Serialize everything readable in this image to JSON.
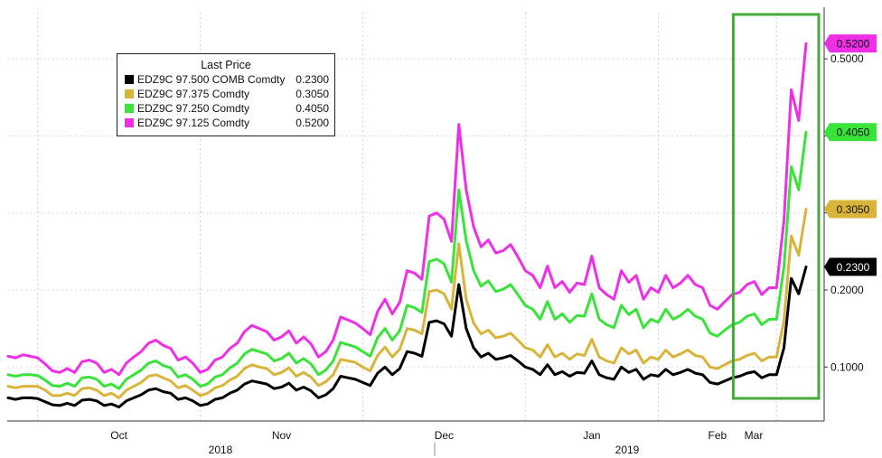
{
  "chart_data": {
    "type": "line",
    "legend_title": "Last Price",
    "legend_placement": "top-left",
    "y_axis_side": "right",
    "ylim": [
      0.03,
      0.56
    ],
    "y_ticks": [
      0.1,
      0.2,
      0.3,
      0.4,
      0.5
    ],
    "y_tick_labels": [
      "0.1000",
      "0.2000",
      "0.3000",
      "0.4000",
      "0.5000"
    ],
    "grid": "vertical dashed",
    "x_month_labels": [
      "Oct",
      "Nov",
      "Dec",
      "Jan",
      "Feb",
      "Mar"
    ],
    "x_year_labels": [
      "2018",
      "2019"
    ],
    "x_count": 109,
    "highlight_box_start_index": 99,
    "highlight_color": "#44aa3a",
    "series": [
      {
        "name": "EDZ9C 97.500 COMB Comdty",
        "last": "0.2300",
        "color": "#000000",
        "values": [
          0.06,
          0.058,
          0.06,
          0.06,
          0.059,
          0.055,
          0.051,
          0.05,
          0.053,
          0.05,
          0.057,
          0.058,
          0.056,
          0.05,
          0.052,
          0.048,
          0.056,
          0.06,
          0.064,
          0.07,
          0.072,
          0.068,
          0.066,
          0.058,
          0.06,
          0.056,
          0.05,
          0.052,
          0.058,
          0.06,
          0.066,
          0.07,
          0.078,
          0.082,
          0.08,
          0.078,
          0.072,
          0.074,
          0.079,
          0.07,
          0.074,
          0.069,
          0.06,
          0.064,
          0.072,
          0.088,
          0.086,
          0.084,
          0.08,
          0.076,
          0.092,
          0.1,
          0.09,
          0.098,
          0.12,
          0.118,
          0.114,
          0.158,
          0.16,
          0.156,
          0.14,
          0.207,
          0.15,
          0.125,
          0.113,
          0.118,
          0.11,
          0.112,
          0.115,
          0.108,
          0.1,
          0.097,
          0.09,
          0.103,
          0.09,
          0.094,
          0.088,
          0.093,
          0.092,
          0.108,
          0.09,
          0.086,
          0.084,
          0.1,
          0.093,
          0.097,
          0.084,
          0.09,
          0.088,
          0.097,
          0.09,
          0.093,
          0.097,
          0.092,
          0.09,
          0.08,
          0.078,
          0.082,
          0.086,
          0.088,
          0.092,
          0.094,
          0.086,
          0.09,
          0.09,
          0.125,
          0.215,
          0.195,
          0.23
        ]
      },
      {
        "name": "EDZ9C 97.375 Comdty",
        "last": "0.3050",
        "color": "#d8b43a",
        "values": [
          0.075,
          0.073,
          0.075,
          0.075,
          0.075,
          0.07,
          0.063,
          0.063,
          0.066,
          0.063,
          0.072,
          0.073,
          0.07,
          0.063,
          0.066,
          0.06,
          0.07,
          0.075,
          0.08,
          0.088,
          0.09,
          0.086,
          0.082,
          0.073,
          0.076,
          0.07,
          0.063,
          0.066,
          0.073,
          0.076,
          0.083,
          0.088,
          0.098,
          0.103,
          0.1,
          0.098,
          0.09,
          0.093,
          0.099,
          0.088,
          0.093,
          0.087,
          0.076,
          0.081,
          0.09,
          0.11,
          0.108,
          0.106,
          0.1,
          0.095,
          0.115,
          0.126,
          0.113,
          0.123,
          0.15,
          0.148,
          0.143,
          0.198,
          0.2,
          0.195,
          0.175,
          0.26,
          0.188,
          0.157,
          0.143,
          0.148,
          0.138,
          0.14,
          0.144,
          0.135,
          0.125,
          0.122,
          0.113,
          0.129,
          0.113,
          0.118,
          0.11,
          0.117,
          0.115,
          0.136,
          0.113,
          0.108,
          0.105,
          0.125,
          0.117,
          0.122,
          0.105,
          0.113,
          0.11,
          0.122,
          0.113,
          0.117,
          0.122,
          0.115,
          0.113,
          0.1,
          0.098,
          0.103,
          0.108,
          0.11,
          0.115,
          0.118,
          0.108,
          0.113,
          0.113,
          0.16,
          0.27,
          0.245,
          0.305
        ]
      },
      {
        "name": "EDZ9C 97.250 Comdty",
        "last": "0.4050",
        "color": "#39e339",
        "values": [
          0.09,
          0.088,
          0.09,
          0.09,
          0.089,
          0.083,
          0.076,
          0.075,
          0.079,
          0.075,
          0.086,
          0.087,
          0.084,
          0.075,
          0.078,
          0.072,
          0.084,
          0.09,
          0.096,
          0.105,
          0.108,
          0.102,
          0.099,
          0.087,
          0.09,
          0.084,
          0.075,
          0.078,
          0.087,
          0.09,
          0.099,
          0.105,
          0.117,
          0.123,
          0.12,
          0.117,
          0.108,
          0.111,
          0.118,
          0.105,
          0.111,
          0.104,
          0.09,
          0.096,
          0.108,
          0.132,
          0.129,
          0.126,
          0.12,
          0.114,
          0.138,
          0.15,
          0.135,
          0.147,
          0.18,
          0.177,
          0.171,
          0.237,
          0.24,
          0.234,
          0.21,
          0.33,
          0.264,
          0.225,
          0.205,
          0.212,
          0.198,
          0.201,
          0.207,
          0.194,
          0.18,
          0.175,
          0.162,
          0.185,
          0.162,
          0.169,
          0.158,
          0.167,
          0.166,
          0.195,
          0.162,
          0.155,
          0.151,
          0.18,
          0.168,
          0.175,
          0.151,
          0.162,
          0.158,
          0.175,
          0.162,
          0.167,
          0.175,
          0.166,
          0.162,
          0.144,
          0.14,
          0.148,
          0.155,
          0.158,
          0.166,
          0.169,
          0.155,
          0.162,
          0.162,
          0.23,
          0.36,
          0.33,
          0.405
        ]
      },
      {
        "name": "EDZ9C 97.125 Comdty",
        "last": "0.5200",
        "color": "#ee2fe6",
        "values": [
          0.114,
          0.112,
          0.116,
          0.114,
          0.112,
          0.104,
          0.095,
          0.093,
          0.098,
          0.093,
          0.107,
          0.109,
          0.105,
          0.093,
          0.097,
          0.09,
          0.105,
          0.113,
          0.12,
          0.131,
          0.135,
          0.128,
          0.124,
          0.109,
          0.113,
          0.105,
          0.093,
          0.097,
          0.109,
          0.113,
          0.124,
          0.131,
          0.146,
          0.154,
          0.15,
          0.146,
          0.135,
          0.139,
          0.147,
          0.131,
          0.139,
          0.13,
          0.113,
          0.12,
          0.135,
          0.165,
          0.161,
          0.157,
          0.15,
          0.142,
          0.172,
          0.188,
          0.169,
          0.184,
          0.225,
          0.222,
          0.214,
          0.296,
          0.3,
          0.292,
          0.263,
          0.415,
          0.33,
          0.282,
          0.256,
          0.265,
          0.248,
          0.251,
          0.259,
          0.243,
          0.225,
          0.219,
          0.203,
          0.231,
          0.203,
          0.211,
          0.197,
          0.209,
          0.207,
          0.244,
          0.203,
          0.194,
          0.188,
          0.225,
          0.21,
          0.219,
          0.188,
          0.203,
          0.197,
          0.219,
          0.203,
          0.209,
          0.219,
          0.207,
          0.203,
          0.18,
          0.175,
          0.185,
          0.194,
          0.197,
          0.207,
          0.211,
          0.194,
          0.203,
          0.203,
          0.29,
          0.46,
          0.42,
          0.52
        ]
      }
    ]
  }
}
